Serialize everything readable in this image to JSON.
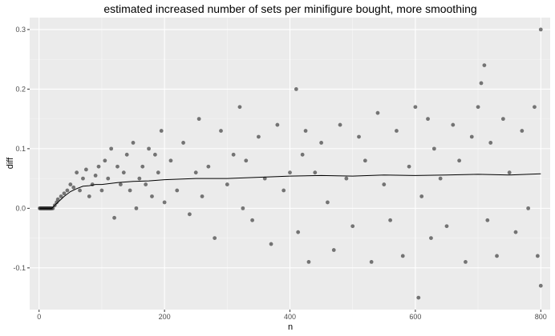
{
  "chart_data": {
    "type": "scatter",
    "title": "estimated increased number of sets per minifigure bought, more smoothing",
    "xlabel": "n",
    "ylabel": "diff",
    "xlim": [
      -15,
      815
    ],
    "ylim": [
      -0.17,
      0.32
    ],
    "x_ticks": [
      0,
      200,
      400,
      600,
      800
    ],
    "x_tick_labels": [
      "0",
      "200",
      "400",
      "600",
      "800"
    ],
    "y_ticks": [
      -0.1,
      0.0,
      0.1,
      0.2,
      0.3
    ],
    "y_tick_labels": [
      "-0.1",
      "0.0",
      "0.1",
      "0.2",
      "0.3"
    ],
    "grid": true,
    "panel_background": "#ebebeb",
    "point_color": "#333333",
    "line_color": "#000000",
    "series": [
      {
        "kind": "points",
        "x": [
          1,
          2,
          3,
          4,
          5,
          6,
          7,
          8,
          9,
          10,
          11,
          12,
          13,
          14,
          15,
          16,
          17,
          18,
          19,
          20,
          22,
          25,
          28,
          30,
          35,
          40,
          45,
          50,
          55,
          60,
          65,
          70,
          75,
          80,
          85,
          90,
          95,
          100,
          105,
          110,
          115,
          120,
          125,
          130,
          135,
          140,
          145,
          150,
          155,
          160,
          165,
          170,
          175,
          180,
          185,
          190,
          195,
          200,
          210,
          220,
          230,
          240,
          250,
          255,
          260,
          270,
          280,
          290,
          300,
          310,
          320,
          325,
          330,
          340,
          350,
          360,
          370,
          380,
          390,
          400,
          410,
          413,
          420,
          425,
          430,
          440,
          450,
          460,
          470,
          480,
          490,
          500,
          510,
          520,
          530,
          540,
          550,
          560,
          570,
          580,
          590,
          600,
          605,
          610,
          620,
          625,
          630,
          640,
          650,
          660,
          670,
          680,
          690,
          700,
          705,
          710,
          715,
          720,
          730,
          740,
          750,
          760,
          770,
          780,
          790,
          795,
          800,
          800
        ],
        "y": [
          0.0,
          0.0,
          0.0,
          0.0,
          0.0,
          0.0,
          0.0,
          0.0,
          0.0,
          0.0,
          0.0,
          0.0,
          0.0,
          0.0,
          0.0,
          0.0,
          0.0,
          0.0,
          0.0,
          0.0,
          0.0,
          0.005,
          0.01,
          0.015,
          0.02,
          0.025,
          0.03,
          0.04,
          0.035,
          0.06,
          0.03,
          0.05,
          0.065,
          0.02,
          0.04,
          0.055,
          0.07,
          0.03,
          0.08,
          0.05,
          0.1,
          -0.016,
          0.07,
          0.04,
          0.06,
          0.09,
          0.03,
          0.11,
          0.0,
          0.05,
          0.07,
          0.04,
          0.1,
          0.02,
          0.09,
          0.06,
          0.13,
          0.01,
          0.08,
          0.03,
          0.11,
          -0.01,
          0.06,
          0.15,
          0.02,
          0.07,
          -0.05,
          0.13,
          0.04,
          0.09,
          0.17,
          0.0,
          0.08,
          -0.02,
          0.12,
          0.05,
          -0.06,
          0.14,
          0.03,
          0.06,
          0.2,
          -0.04,
          0.09,
          0.13,
          -0.09,
          0.06,
          0.11,
          0.01,
          -0.07,
          0.14,
          0.05,
          -0.03,
          0.12,
          0.08,
          -0.09,
          0.16,
          0.04,
          -0.02,
          0.13,
          -0.08,
          0.07,
          0.17,
          -0.15,
          0.02,
          0.15,
          -0.05,
          0.1,
          0.05,
          -0.03,
          0.14,
          0.08,
          -0.09,
          0.12,
          0.17,
          0.21,
          0.24,
          -0.02,
          0.11,
          -0.08,
          0.15,
          0.06,
          -0.04,
          0.13,
          0.0,
          0.17,
          -0.08,
          0.3,
          -0.13
        ]
      },
      {
        "kind": "line",
        "x": [
          1,
          10,
          20,
          25,
          30,
          40,
          50,
          60,
          70,
          80,
          90,
          100,
          125,
          150,
          175,
          200,
          250,
          300,
          350,
          400,
          450,
          500,
          550,
          600,
          650,
          700,
          750,
          800
        ],
        "y": [
          0.0,
          0.0,
          0.0,
          0.005,
          0.01,
          0.02,
          0.028,
          0.033,
          0.037,
          0.038,
          0.04,
          0.04,
          0.043,
          0.045,
          0.046,
          0.048,
          0.05,
          0.05,
          0.052,
          0.054,
          0.055,
          0.054,
          0.056,
          0.055,
          0.056,
          0.057,
          0.056,
          0.058
        ]
      }
    ]
  }
}
